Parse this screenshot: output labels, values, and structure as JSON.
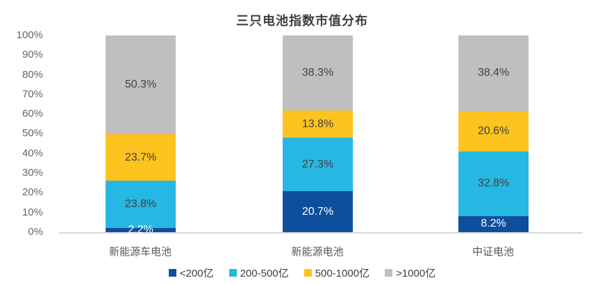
{
  "chart": {
    "title": "三只电池指数市值分布"
  },
  "chart_data": {
    "type": "bar",
    "stacked": true,
    "title": "三只电池指数市值分布",
    "categories": [
      "新能源车电池",
      "新能源电池",
      "中证电池"
    ],
    "series": [
      {
        "name": "<200亿",
        "color": "#0e4f9d",
        "text_color": "#ffffff",
        "values": [
          2.2,
          20.7,
          8.2
        ],
        "labels": [
          "2.2%",
          "20.7%",
          "8.2%"
        ]
      },
      {
        "name": "200-500亿",
        "color": "#27b7e3",
        "text_color": "#404040",
        "values": [
          23.8,
          27.3,
          32.8
        ],
        "labels": [
          "23.8%",
          "27.3%",
          "32.8%"
        ]
      },
      {
        "name": "500-1000亿",
        "color": "#fdc31e",
        "text_color": "#404040",
        "values": [
          23.7,
          13.8,
          20.6
        ],
        "labels": [
          "23.7%",
          "13.8%",
          "20.6%"
        ]
      },
      {
        "name": ">1000亿",
        "color": "#bfbfbf",
        "text_color": "#404040",
        "values": [
          50.3,
          38.3,
          38.4
        ],
        "labels": [
          "50.3%",
          "38.3%",
          "38.4%"
        ]
      }
    ],
    "yticks": [
      "100%",
      "90%",
      "80%",
      "70%",
      "60%",
      "50%",
      "40%",
      "30%",
      "20%",
      "10%",
      "0%"
    ],
    "ylim": [
      0,
      100
    ],
    "grid": false,
    "legend_position": "bottom",
    "axis_line_color": "#d8d8d8"
  }
}
